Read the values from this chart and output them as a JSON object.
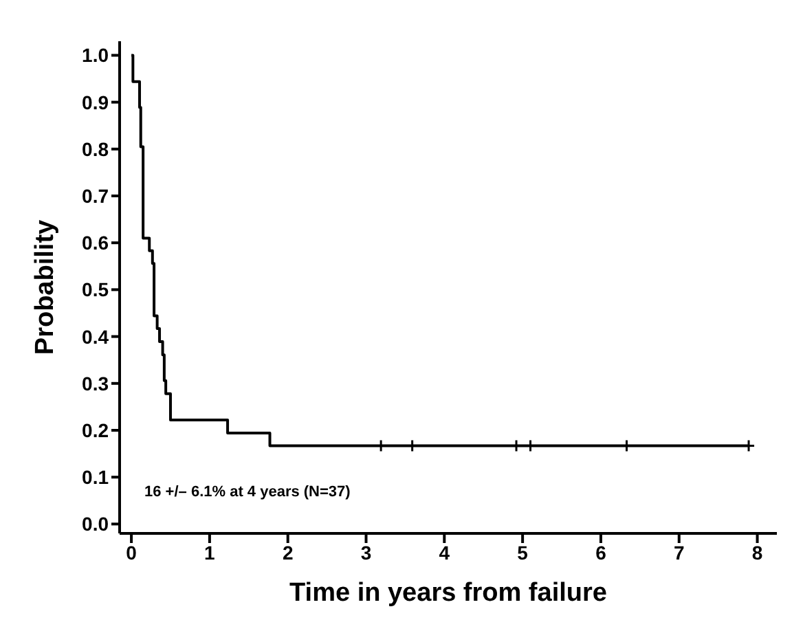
{
  "chart_data": {
    "type": "step",
    "xlabel": "Time in years from failure",
    "ylabel": "Probability",
    "annotations": [
      "16 +/– 6.1% at 4 years (N=37)"
    ],
    "xlim": [
      -0.15,
      8.25
    ],
    "xticks": [
      0,
      1,
      2,
      3,
      4,
      5,
      6,
      7,
      8
    ],
    "ylim": [
      -0.02,
      1.03
    ],
    "yticks": [
      {
        "value": 0,
        "label": "0.0"
      },
      0.1,
      0.2,
      0.3,
      0.4,
      0.5,
      0.6,
      0.7,
      0.8,
      0.9,
      {
        "value": 1,
        "label": "1.0"
      }
    ],
    "grid": false,
    "series": [
      {
        "color": "#000000",
        "x": [
          0,
          0.02,
          0.105,
          0.12,
          0.15,
          0.23,
          0.27,
          0.29,
          0.33,
          0.36,
          0.4,
          0.42,
          0.44,
          0.5,
          1.23,
          1.77,
          7.89
        ],
        "values": [
          1.0,
          0.944,
          0.889,
          0.805,
          0.61,
          0.583,
          0.556,
          0.444,
          0.417,
          0.389,
          0.361,
          0.306,
          0.278,
          0.222,
          0.194,
          0.167,
          0.167
        ]
      },
      {
        "type": "scatter",
        "marker": "cross",
        "color": "#000000",
        "x": [
          3.19,
          3.59,
          4.92,
          5.1,
          6.33,
          7.89
        ],
        "values": [
          0.167,
          0.167,
          0.167,
          0.167,
          0.167,
          0.167
        ]
      }
    ]
  }
}
